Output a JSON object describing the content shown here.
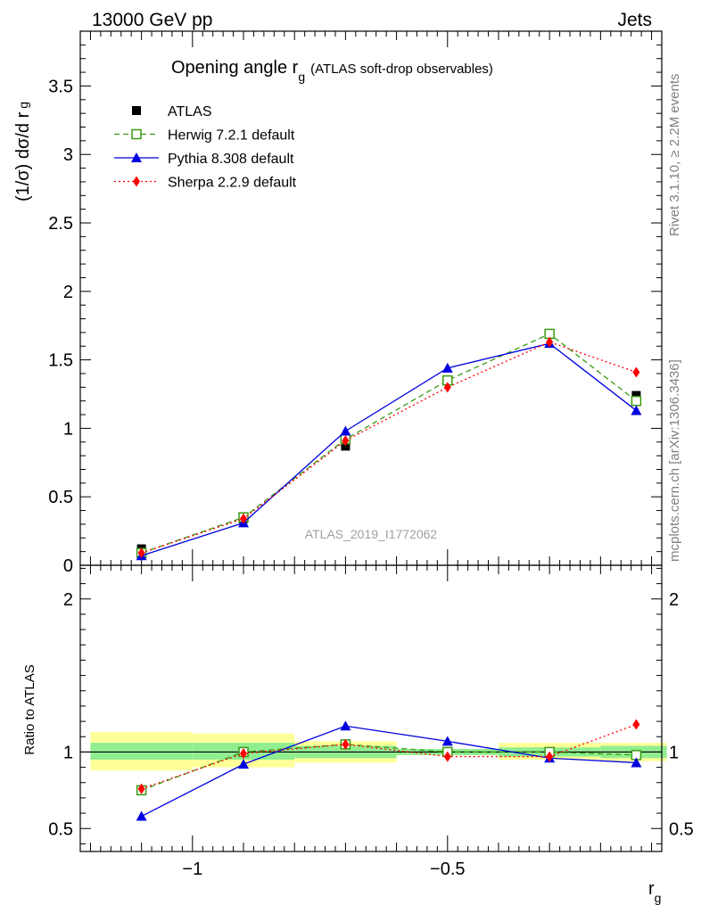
{
  "header": {
    "left": "13000 GeV pp",
    "right": "Jets"
  },
  "title": {
    "main": "Opening angle r",
    "main_sub": "g",
    "suffix": "(ATLAS soft-drop observables)"
  },
  "side_text": {
    "rivet": "Rivet 3.1.10, ≥ 2.2M events",
    "mcplots": "mcplots.cern.ch [arXiv:1306.3436]"
  },
  "watermark": "ATLAS_2019_I1772062",
  "axes": {
    "ylabel_top": "(1/σ) dσ/d r",
    "ylabel_top_sub": "g",
    "ylabel_bottom": "Ratio to ATLAS",
    "xlabel": "r",
    "xlabel_sub": "g"
  },
  "colors": {
    "data": "#000000",
    "herwig": "#3a9a10",
    "pythia": "#0000e0",
    "sherpa": "#ff0000",
    "band_inner": "#90ee90",
    "band_outer": "#ffff99"
  },
  "chart_data": [
    {
      "type": "line",
      "panel": "main",
      "xlim": [
        -1.22,
        -0.08
      ],
      "ylim": [
        0,
        3.9
      ],
      "x_ticks": [
        -1,
        -0.5
      ],
      "y_ticks": [
        0,
        0.5,
        1,
        1.5,
        2,
        2.5,
        3,
        3.5
      ],
      "y_tick_labels": [
        "0",
        "0.5",
        "1",
        "1.5",
        "2",
        "2.5",
        "3",
        "3.5"
      ],
      "x": [
        -1.1,
        -0.9,
        -0.7,
        -0.5,
        -0.3,
        -0.13
      ],
      "series": [
        {
          "name": "ATLAS",
          "key": "data",
          "marker": "square",
          "values": [
            0.12,
            0.34,
            0.87,
            1.35,
            1.69,
            1.24
          ]
        },
        {
          "name": "Herwig 7.2.1 default",
          "key": "herwig",
          "marker": "open-square",
          "dash": "dashed",
          "values": [
            0.09,
            0.35,
            0.92,
            1.35,
            1.69,
            1.2
          ]
        },
        {
          "name": "Pythia 8.308 default",
          "key": "pythia",
          "marker": "triangle",
          "dash": "solid",
          "values": [
            0.07,
            0.31,
            0.98,
            1.44,
            1.62,
            1.13
          ]
        },
        {
          "name": "Sherpa 2.2.9 default",
          "key": "sherpa",
          "marker": "diamond",
          "dash": "dotted",
          "values": [
            0.09,
            0.34,
            0.91,
            1.3,
            1.63,
            1.41
          ]
        }
      ]
    },
    {
      "type": "line",
      "panel": "ratio",
      "xlim": [
        -1.22,
        -0.08
      ],
      "ylim": [
        0.35,
        2.22
      ],
      "x_ticks": [
        -1,
        -0.5
      ],
      "x_tick_labels": [
        "−1",
        "−0.5"
      ],
      "y_ticks": [
        0.5,
        1,
        2
      ],
      "y_tick_labels": [
        "0.5",
        "1",
        "2"
      ],
      "x": [
        -1.1,
        -0.9,
        -0.7,
        -0.5,
        -0.3,
        -0.13
      ],
      "bins": [
        [
          -1.2,
          -1.0
        ],
        [
          -1.0,
          -0.8
        ],
        [
          -0.8,
          -0.6
        ],
        [
          -0.6,
          -0.4
        ],
        [
          -0.4,
          -0.2
        ],
        [
          -0.2,
          -0.07
        ]
      ],
      "band_inner": [
        [
          0.95,
          1.06
        ],
        [
          0.95,
          1.06
        ],
        [
          0.96,
          1.04
        ],
        [
          0.98,
          1.02
        ],
        [
          0.97,
          1.03
        ],
        [
          0.96,
          1.04
        ]
      ],
      "band_outer": [
        [
          0.88,
          1.13
        ],
        [
          0.9,
          1.12
        ],
        [
          0.93,
          1.07
        ],
        [
          0.98,
          1.02
        ],
        [
          0.95,
          1.06
        ],
        [
          0.94,
          1.06
        ]
      ],
      "series": [
        {
          "name": "Herwig 7.2.1 default",
          "key": "herwig",
          "marker": "open-square",
          "dash": "dashed",
          "values": [
            0.75,
            1.0,
            1.05,
            1.0,
            1.0,
            0.98
          ]
        },
        {
          "name": "Pythia 8.308 default",
          "key": "pythia",
          "marker": "triangle",
          "dash": "solid",
          "values": [
            0.58,
            0.92,
            1.17,
            1.07,
            0.96,
            0.93
          ]
        },
        {
          "name": "Sherpa 2.2.9 default",
          "key": "sherpa",
          "marker": "diamond",
          "dash": "dotted",
          "values": [
            0.76,
            0.99,
            1.05,
            0.97,
            0.97,
            1.18
          ]
        }
      ]
    }
  ]
}
